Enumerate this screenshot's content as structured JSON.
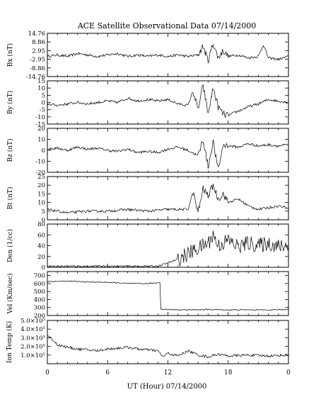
{
  "chart_data": {
    "type": "line",
    "title": "ACE Satellite Observational Data   07/14/2000",
    "xlabel": "UT (Hour)   07/14/2000",
    "x_ticks": [
      "0",
      "6",
      "12",
      "18",
      "0"
    ],
    "xlim": [
      0,
      24
    ],
    "panels": [
      {
        "ylabel": "Bx (nT)",
        "ylim": [
          -14.76,
          14.76
        ],
        "y_ticks": [
          {
            "v": 14.76,
            "label": "14.76"
          },
          {
            "v": 8.86,
            "label": "8.86"
          },
          {
            "v": 2.95,
            "label": "2.95"
          },
          {
            "v": -2.95,
            "label": "-2.95"
          },
          {
            "v": -8.86,
            "label": "-8.86"
          },
          {
            "v": -14.76,
            "label": "-14.76"
          }
        ],
        "series": [
          {
            "x": [
              0,
              1,
              2,
              3,
              4,
              5,
              6,
              7,
              8,
              9,
              10,
              11,
              12,
              13,
              14,
              15,
              15.5,
              16,
              16.5,
              17,
              17.5,
              18,
              19,
              20,
              21,
              21.5,
              22,
              23,
              24
            ],
            "values": [
              -1,
              0,
              -1,
              1,
              0,
              -1,
              0,
              1,
              -1,
              0,
              -1,
              0,
              -1,
              0,
              -1,
              0,
              6,
              -4,
              8,
              -2,
              3,
              -1,
              0,
              -2,
              -1,
              7,
              -2,
              -3,
              -1
            ]
          }
        ]
      },
      {
        "ylabel": "By (nT)",
        "ylim": [
          -15,
          15
        ],
        "y_ticks": [
          {
            "v": 15,
            "label": "15"
          },
          {
            "v": 10,
            "label": "10"
          },
          {
            "v": 5,
            "label": "5"
          },
          {
            "v": 0,
            "label": "0"
          },
          {
            "v": -5,
            "label": "-5"
          },
          {
            "v": -10,
            "label": "-10"
          },
          {
            "v": -15,
            "label": "-15"
          }
        ],
        "series": [
          {
            "x": [
              0,
              1,
              2,
              3,
              4,
              5,
              6,
              7,
              8,
              9,
              10,
              11,
              12,
              13,
              14,
              14.5,
              15,
              15.5,
              16,
              16.5,
              17,
              17.5,
              18,
              19,
              20,
              21,
              22,
              23,
              24
            ],
            "values": [
              -1,
              -2,
              -1,
              0,
              -1,
              0,
              1,
              0,
              3,
              1,
              2,
              1,
              2,
              -1,
              -2,
              8,
              -5,
              12,
              -8,
              10,
              -3,
              -8,
              -9,
              -6,
              -3,
              -1,
              2,
              1,
              0
            ]
          }
        ]
      },
      {
        "ylabel": "Bz (nT)",
        "ylim": [
          -20,
          20
        ],
        "y_ticks": [
          {
            "v": 20,
            "label": "20"
          },
          {
            "v": 10,
            "label": "10"
          },
          {
            "v": 0,
            "label": "0"
          },
          {
            "v": -10,
            "label": "-10"
          },
          {
            "v": -20,
            "label": "-20"
          }
        ],
        "series": [
          {
            "x": [
              0,
              1,
              2,
              3,
              4,
              5,
              6,
              7,
              8,
              9,
              10,
              11,
              12,
              13,
              14,
              15,
              15.5,
              16,
              16.5,
              17,
              17.5,
              18,
              19,
              20,
              21,
              22,
              23,
              24
            ],
            "values": [
              1,
              2,
              0,
              3,
              1,
              2,
              0,
              -1,
              1,
              -2,
              -1,
              -2,
              1,
              3,
              0,
              -5,
              10,
              -15,
              8,
              -18,
              5,
              4,
              3,
              6,
              4,
              5,
              4,
              5
            ]
          }
        ]
      },
      {
        "ylabel": "Bt (nT)",
        "ylim": [
          0,
          25
        ],
        "y_ticks": [
          {
            "v": 25,
            "label": "25"
          },
          {
            "v": 20,
            "label": "20"
          },
          {
            "v": 15,
            "label": "15"
          },
          {
            "v": 10,
            "label": "10"
          },
          {
            "v": 5,
            "label": "5"
          },
          {
            "v": 0,
            "label": "0"
          }
        ],
        "series": [
          {
            "x": [
              0,
              2,
              4,
              6,
              8,
              10,
              12,
              14,
              14.5,
              15,
              15.5,
              16,
              16.5,
              17,
              17.5,
              18,
              19,
              20,
              21,
              22,
              23,
              24
            ],
            "values": [
              6,
              4,
              5,
              5,
              6,
              5,
              6,
              6,
              16,
              4,
              18,
              14,
              20,
              12,
              15,
              10,
              12,
              8,
              6,
              7,
              8,
              7
            ]
          }
        ]
      },
      {
        "ylabel": "Den (1/cc)",
        "ylim": [
          0,
          80
        ],
        "y_ticks": [
          {
            "v": 80,
            "label": "80"
          },
          {
            "v": 60,
            "label": "60"
          },
          {
            "v": 40,
            "label": "40"
          },
          {
            "v": 20,
            "label": "20"
          },
          {
            "v": 0,
            "label": "0"
          }
        ],
        "series": [
          {
            "x": [
              0,
              2,
              4,
              6,
              8,
              10,
              11,
              12,
              13,
              14,
              15,
              16,
              16.5,
              17,
              18,
              19,
              20,
              21,
              22,
              23,
              24
            ],
            "values": [
              2,
              2,
              2,
              2,
              2,
              2,
              2,
              8,
              15,
              25,
              35,
              45,
              60,
              40,
              50,
              38,
              45,
              40,
              45,
              38,
              40
            ]
          }
        ]
      },
      {
        "ylabel": "Vel (Km/sec)",
        "ylim": [
          200,
          750
        ],
        "y_ticks": [
          {
            "v": 700,
            "label": "700"
          },
          {
            "v": 600,
            "label": "600"
          },
          {
            "v": 500,
            "label": "500"
          },
          {
            "v": 400,
            "label": "400"
          },
          {
            "v": 300,
            "label": "300"
          },
          {
            "v": 200,
            "label": "200"
          }
        ],
        "series": [
          {
            "x": [
              0,
              2,
              4,
              6,
              8,
              10,
              11,
              11.2,
              11.3,
              12,
              14,
              16,
              18,
              20,
              22,
              24
            ],
            "values": [
              625,
              630,
              620,
              615,
              600,
              600,
              610,
              620,
              280,
              275,
              270,
              275,
              270,
              272,
              270,
              275
            ]
          }
        ]
      },
      {
        "ylabel": "Ion Temp (K)",
        "ylim": [
          0,
          500000
        ],
        "y_ticks": [
          {
            "v": 500000,
            "label": "5.0×10⁵"
          },
          {
            "v": 400000,
            "label": "4.0×10⁵"
          },
          {
            "v": 300000,
            "label": "3.0×10⁵"
          },
          {
            "v": 200000,
            "label": "2.0×10⁵"
          },
          {
            "v": 100000,
            "label": "1.0×10⁵"
          }
        ],
        "series": [
          {
            "x": [
              0,
              0.5,
              1,
              2,
              3,
              4,
              5,
              6,
              7,
              8,
              9,
              10,
              11,
              11.5,
              12,
              13,
              14,
              15,
              16,
              17,
              18,
              20,
              22,
              24
            ],
            "values": [
              330000,
              280000,
              220000,
              190000,
              170000,
              160000,
              150000,
              170000,
              180000,
              190000,
              170000,
              160000,
              150000,
              80000,
              120000,
              90000,
              150000,
              100000,
              80000,
              110000,
              90000,
              100000,
              90000,
              100000
            ]
          }
        ]
      }
    ]
  }
}
